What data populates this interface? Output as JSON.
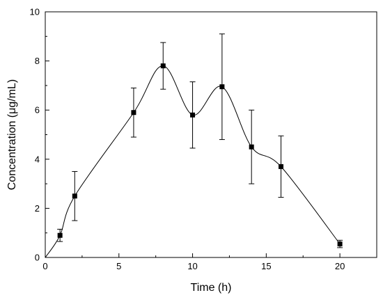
{
  "chart_data": {
    "type": "line",
    "title": "",
    "xlabel": "Time (h)",
    "ylabel": "Concentration (μg/mL)",
    "xlim": [
      0,
      22.5
    ],
    "ylim": [
      0,
      10
    ],
    "x_ticks": [
      0,
      5,
      10,
      15,
      20
    ],
    "y_ticks": [
      0,
      2,
      4,
      6,
      8,
      10
    ],
    "x_tick_labels": [
      "0",
      "5",
      "10",
      "15",
      "20"
    ],
    "y_tick_labels": [
      "0",
      "2",
      "4",
      "6",
      "8",
      "10"
    ],
    "grid": false,
    "legend": "none",
    "smooth_curve": true,
    "curve_starts_at_origin": true,
    "series": [
      {
        "x": [
          1,
          2,
          6,
          8,
          10,
          12,
          14,
          16,
          20
        ],
        "y": [
          0.9,
          2.5,
          5.9,
          7.8,
          5.8,
          6.95,
          4.5,
          3.7,
          0.55
        ],
        "error": [
          0.25,
          1.0,
          1.0,
          0.95,
          1.35,
          2.15,
          1.5,
          1.25,
          0.15
        ],
        "marker": "square",
        "color": "#000000"
      }
    ]
  }
}
